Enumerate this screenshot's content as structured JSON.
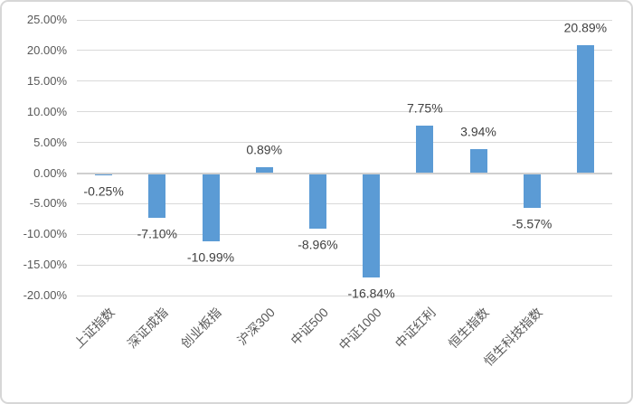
{
  "chart_data": {
    "type": "bar",
    "title": "",
    "xlabel": "",
    "ylabel": "",
    "categories": [
      "上证指数",
      "深证成指",
      "创业板指",
      "沪深300",
      "中证500",
      "中证1000",
      "中证红利",
      "恒生指数",
      "恒生科技指数",
      ""
    ],
    "values": [
      -0.25,
      -7.1,
      -10.99,
      0.89,
      -8.96,
      -16.84,
      7.75,
      3.94,
      -5.57,
      20.89
    ],
    "data_labels": [
      "-0.25%",
      "-7.10%",
      "-10.99%",
      "0.89%",
      "-8.96%",
      "-16.84%",
      "7.75%",
      "3.94%",
      "-5.57%",
      "20.89%"
    ],
    "y_axis": {
      "tick_labels": [
        "25.00%",
        "20.00%",
        "15.00%",
        "10.00%",
        "5.00%",
        "0.00%",
        "-5.00%",
        "-10.00%",
        "-15.00%",
        "-20.00%"
      ],
      "tick_values": [
        25,
        20,
        15,
        10,
        5,
        0,
        -5,
        -10,
        -15,
        -20
      ],
      "min": -20,
      "max": 25,
      "step": 5
    },
    "grid": true,
    "legend": "none",
    "colors": {
      "bar": "#5b9bd5",
      "gridline": "#d9d9d9",
      "axis_line": "#cfcfcf",
      "axis_text": "#595959",
      "data_label_text": "#404040",
      "frame_border": "#d7d7d7",
      "background": "#ffffff"
    }
  }
}
